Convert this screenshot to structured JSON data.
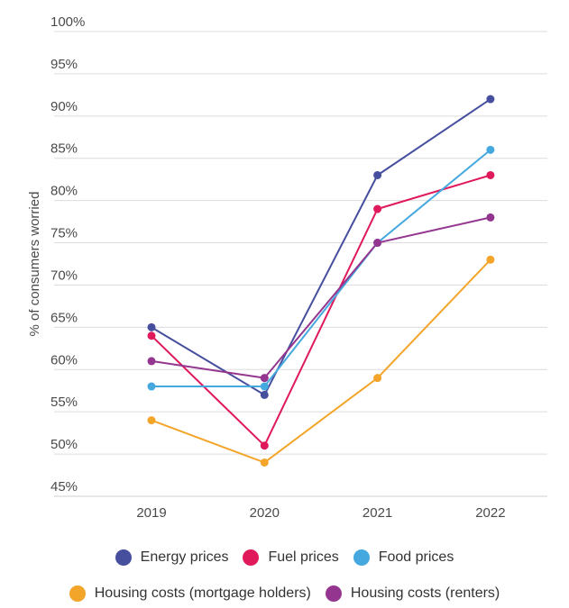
{
  "chart_data": {
    "type": "line",
    "title": "",
    "xlabel": "",
    "ylabel": "% of consumers worried",
    "categories": [
      "2019",
      "2020",
      "2021",
      "2022"
    ],
    "ylim": [
      45,
      100
    ],
    "yticks": [
      45,
      50,
      55,
      60,
      65,
      70,
      75,
      80,
      85,
      90,
      95,
      100
    ],
    "ytick_labels": [
      "45%",
      "50%",
      "55%",
      "60%",
      "65%",
      "70%",
      "75%",
      "80%",
      "85%",
      "90%",
      "95%",
      "100%"
    ],
    "grid": true,
    "legend_position": "bottom",
    "series": [
      {
        "name": "Energy prices",
        "color": "#464e9e",
        "values": [
          65,
          57,
          83,
          92
        ]
      },
      {
        "name": "Fuel prices",
        "color": "#e0195a",
        "values": [
          64,
          51,
          79,
          83
        ]
      },
      {
        "name": "Food prices",
        "color": "#45a9e0",
        "values": [
          58,
          58,
          75,
          86
        ]
      },
      {
        "name": "Housing costs (mortgage holders)",
        "color": "#f3a52a",
        "values": [
          54,
          49,
          59,
          73
        ]
      },
      {
        "name": "Housing costs (renters)",
        "color": "#94368f",
        "values": [
          61,
          59,
          75,
          78
        ]
      }
    ]
  }
}
